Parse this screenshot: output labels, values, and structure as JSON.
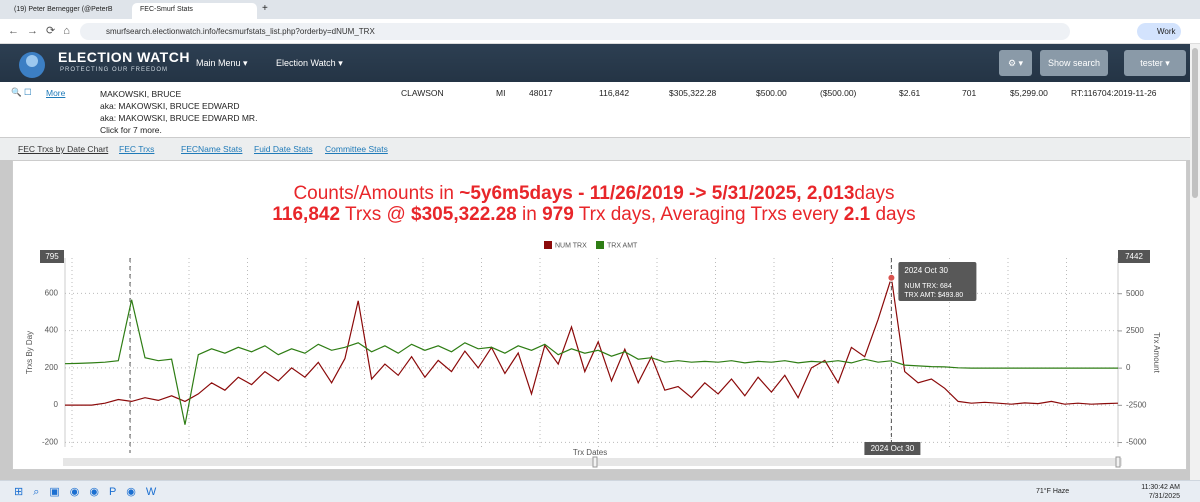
{
  "browser": {
    "tabs": [
      "(19) Peter Bernegger (@PeterB",
      "FEC-Smurf Stats"
    ],
    "url": "smurfsearch.electionwatch.info/fecsmurfstats_list.php?orderby=dNUM_TRX",
    "profile": "Work"
  },
  "nav": {
    "logo_title": "ELECTION WATCH",
    "logo_subtitle": "PROTECTING OUR FREEDOM",
    "menus": [
      "Main Menu",
      "Election Watch"
    ],
    "search_button": "Show search",
    "user": "tester"
  },
  "record": {
    "more_link": "More",
    "name": "MAKOWSKI, BRUCE",
    "aliases": [
      "aka: MAKOWSKI, BRUCE EDWARD",
      "aka: MAKOWSKI, BRUCE EDWARD MR."
    ],
    "more_note": "Click for 7 more.",
    "cells": [
      "CLAWSON",
      "MI",
      "48017",
      "116,842",
      "$305,322.28",
      "$500.00",
      "($500.00)",
      "$2.61",
      "701",
      "$5,299.00",
      "RT:116704:2019-11-26"
    ]
  },
  "tabs": [
    "FEC Trxs by Date Chart",
    "FEC Trxs",
    "FECName Stats",
    "Fuid Date Stats",
    "Committee Stats"
  ],
  "chart_data": {
    "type": "line",
    "title_lines": [
      [
        {
          "text": "Counts/Amounts in ",
          "bold": false
        },
        {
          "text": "~5y6m5days",
          "bold": true
        },
        {
          "text": " - 11/26/2019 -> 5/31/2025, ",
          "bold": true
        },
        {
          "text": "2,013",
          "bold": true
        },
        {
          "text": "days",
          "bold": false
        }
      ],
      [
        {
          "text": "116,842",
          "bold": true
        },
        {
          "text": " Trxs @ ",
          "bold": false
        },
        {
          "text": "$305,322.28",
          "bold": true
        },
        {
          "text": " in ",
          "bold": false
        },
        {
          "text": "979",
          "bold": true
        },
        {
          "text": " Trx days, Averaging Trxs every ",
          "bold": false
        },
        {
          "text": "2.1",
          "bold": true
        },
        {
          "text": " days",
          "bold": false
        }
      ]
    ],
    "x_label": "Trx Dates",
    "y_label": "Trxs By Day",
    "y2_label": "Trx Amount",
    "categories": [
      null,
      null,
      null,
      null,
      null,
      null,
      null,
      null,
      null,
      null,
      null,
      null,
      null,
      null,
      null,
      null,
      null,
      null,
      null,
      null,
      null,
      null,
      null,
      null,
      null,
      null,
      null,
      null,
      null,
      null,
      null,
      null,
      null,
      null,
      null,
      null,
      null,
      null,
      null,
      null,
      null,
      null,
      null,
      null,
      null,
      null,
      null,
      null,
      null,
      null,
      null,
      null,
      null,
      null,
      null,
      null,
      null,
      null,
      null,
      null,
      null,
      null,
      "2024 Oct 30",
      null,
      null,
      null,
      null,
      null,
      null,
      null,
      null,
      null,
      null,
      null,
      null,
      null,
      null,
      null,
      null,
      null
    ],
    "series": [
      {
        "name": "NUM TRX",
        "color": "#8b0a0a",
        "values": [
          0,
          0,
          0,
          10,
          30,
          20,
          40,
          25,
          50,
          20,
          60,
          120,
          80,
          150,
          110,
          180,
          130,
          200,
          150,
          230,
          120,
          250,
          560,
          140,
          220,
          160,
          260,
          150,
          240,
          180,
          290,
          200,
          310,
          170,
          280,
          60,
          320,
          220,
          420,
          180,
          340,
          130,
          300,
          120,
          260,
          80,
          100,
          40,
          120,
          60,
          140,
          50,
          150,
          70,
          160,
          40,
          200,
          240,
          120,
          310,
          260,
          460,
          684,
          180,
          120,
          140,
          90,
          20,
          10,
          15,
          10,
          5,
          12,
          8,
          20,
          5,
          10,
          5,
          8,
          10
        ]
      },
      {
        "name": "TRX AMT",
        "color": "#2e7d14",
        "axis": "y2",
        "values": [
          300,
          320,
          350,
          400,
          500,
          4600,
          700,
          500,
          600,
          -3800,
          900,
          1300,
          1000,
          1400,
          1100,
          1500,
          900,
          1300,
          1000,
          1600,
          1200,
          1400,
          1700,
          1100,
          1500,
          1000,
          1600,
          1200,
          1500,
          1100,
          1700,
          1300,
          1400,
          1000,
          1500,
          1200,
          1600,
          900,
          1300,
          1000,
          1200,
          800,
          1100,
          600,
          700,
          400,
          500,
          400,
          450,
          400,
          500,
          350,
          450,
          400,
          500,
          350,
          450,
          400,
          500,
          350,
          600,
          400,
          493.8,
          200,
          150,
          100,
          80,
          20,
          0,
          0,
          0,
          0,
          0,
          0,
          0,
          0,
          0,
          0,
          0,
          0
        ]
      }
    ],
    "ylim": [
      -225,
      790
    ],
    "yticks": [
      -200,
      0,
      200,
      400,
      600
    ],
    "y2lim": [
      -5300,
      7400
    ],
    "y2ticks": [
      -5000,
      -2500,
      0,
      2500,
      5000
    ],
    "grid": true,
    "legend": "top",
    "crosshair": {
      "index": 62,
      "y_label": "795",
      "y2_label": "7442"
    },
    "tooltip": [
      "NUM TRX: 684",
      "TRX AMT: $493.80"
    ]
  },
  "taskbar": {
    "weather_temp": "71°F",
    "weather_text": "Haze",
    "time": "11:30:42 AM",
    "date": "7/31/2025"
  }
}
